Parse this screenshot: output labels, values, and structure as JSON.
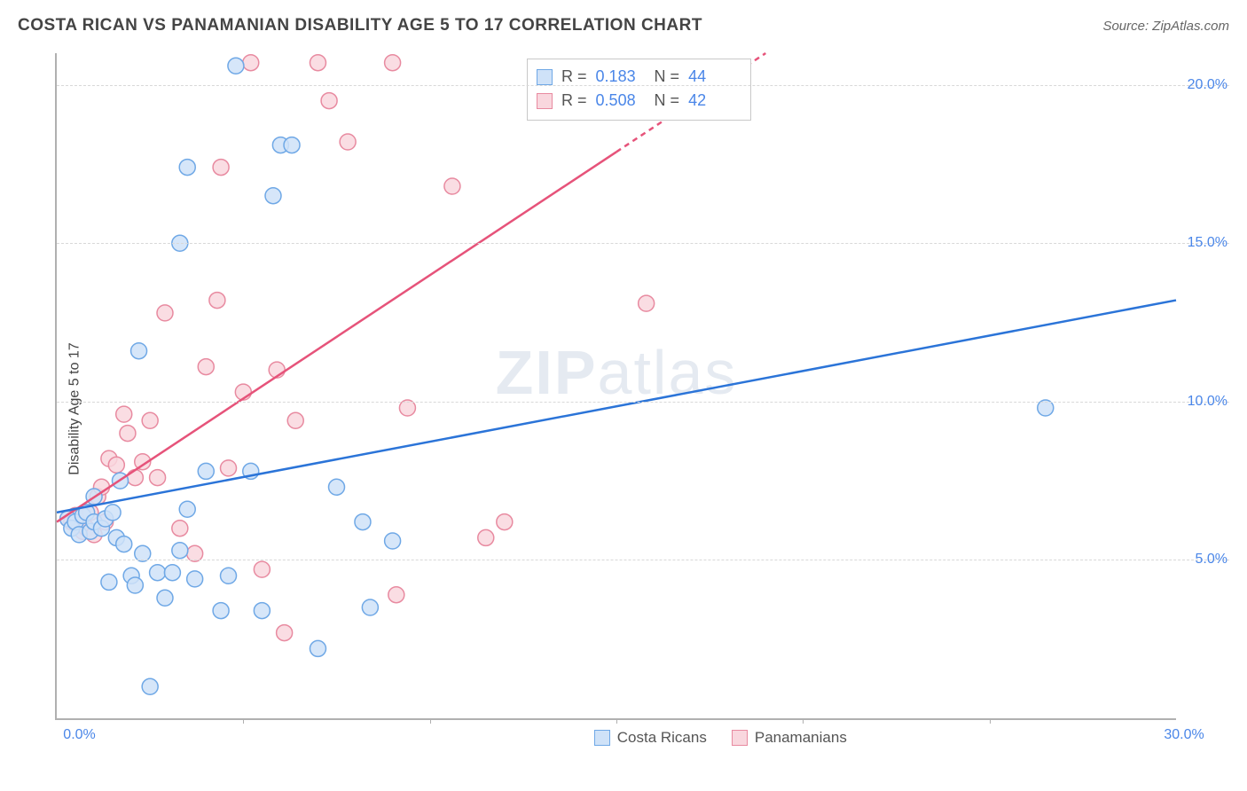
{
  "title": "COSTA RICAN VS PANAMANIAN DISABILITY AGE 5 TO 17 CORRELATION CHART",
  "source": "Source: ZipAtlas.com",
  "ylabel": "Disability Age 5 to 17",
  "watermark_a": "ZIP",
  "watermark_b": "atlas",
  "chart": {
    "type": "scatter",
    "xlim": [
      0,
      30
    ],
    "ylim": [
      0,
      21
    ],
    "xticks": [
      0,
      5,
      10,
      15,
      20,
      25,
      30
    ],
    "xtick_labels": [
      "0.0%",
      "",
      "",
      "",
      "",
      "",
      "30.0%"
    ],
    "xtick_minor": [
      5,
      10,
      15,
      20,
      25
    ],
    "yticks": [
      5,
      10,
      15,
      20
    ],
    "ytick_labels": [
      "5.0%",
      "10.0%",
      "15.0%",
      "20.0%"
    ],
    "grid_color": "#d8d8d8",
    "background_color": "#ffffff",
    "axis_color": "#b0b0b0",
    "marker_radius": 9,
    "marker_stroke_width": 1.5,
    "trend_line_width": 2.5,
    "series": [
      {
        "name": "Costa Ricans",
        "fill": "#cfe2f8",
        "stroke": "#6fa8e6",
        "line_color": "#2b74d8",
        "r": 0.183,
        "n": 44,
        "trend": {
          "x1": 0,
          "y1": 6.5,
          "x2": 30,
          "y2": 13.2,
          "dash_from_x": null
        },
        "points": [
          [
            0.3,
            6.3
          ],
          [
            0.4,
            6.0
          ],
          [
            0.5,
            6.2
          ],
          [
            0.6,
            5.8
          ],
          [
            0.7,
            6.4
          ],
          [
            0.8,
            6.5
          ],
          [
            0.9,
            5.9
          ],
          [
            1.0,
            6.2
          ],
          [
            1.2,
            6.0
          ],
          [
            1.3,
            6.3
          ],
          [
            1.5,
            6.5
          ],
          [
            1.6,
            5.7
          ],
          [
            1.8,
            5.5
          ],
          [
            2.0,
            4.5
          ],
          [
            2.1,
            4.2
          ],
          [
            2.3,
            5.2
          ],
          [
            1.4,
            4.3
          ],
          [
            2.5,
            1.0
          ],
          [
            2.7,
            4.6
          ],
          [
            2.9,
            3.8
          ],
          [
            3.1,
            4.6
          ],
          [
            3.3,
            5.3
          ],
          [
            3.5,
            6.6
          ],
          [
            3.7,
            4.4
          ],
          [
            4.0,
            7.8
          ],
          [
            4.4,
            3.4
          ],
          [
            4.6,
            4.5
          ],
          [
            4.8,
            20.6
          ],
          [
            5.2,
            7.8
          ],
          [
            5.5,
            3.4
          ],
          [
            5.8,
            16.5
          ],
          [
            6.0,
            18.1
          ],
          [
            6.3,
            18.1
          ],
          [
            7.0,
            2.2
          ],
          [
            7.5,
            7.3
          ],
          [
            8.2,
            6.2
          ],
          [
            8.4,
            3.5
          ],
          [
            9.0,
            5.6
          ],
          [
            2.2,
            11.6
          ],
          [
            3.3,
            15.0
          ],
          [
            3.5,
            17.4
          ],
          [
            1.0,
            7.0
          ],
          [
            1.7,
            7.5
          ],
          [
            26.5,
            9.8
          ]
        ]
      },
      {
        "name": "Panamanians",
        "fill": "#f9d7de",
        "stroke": "#e88aa0",
        "line_color": "#e6537a",
        "r": 0.508,
        "n": 42,
        "trend": {
          "x1": 0,
          "y1": 6.2,
          "x2": 19,
          "y2": 21.0,
          "dash_from_x": 15
        },
        "points": [
          [
            0.3,
            6.3
          ],
          [
            0.4,
            6.2
          ],
          [
            0.5,
            6.4
          ],
          [
            0.6,
            6.1
          ],
          [
            0.7,
            5.9
          ],
          [
            0.8,
            6.0
          ],
          [
            0.9,
            6.5
          ],
          [
            1.0,
            5.8
          ],
          [
            1.1,
            7.0
          ],
          [
            1.2,
            7.3
          ],
          [
            1.3,
            6.2
          ],
          [
            1.4,
            8.2
          ],
          [
            1.6,
            8.0
          ],
          [
            1.8,
            9.6
          ],
          [
            1.9,
            9.0
          ],
          [
            2.1,
            7.6
          ],
          [
            2.3,
            8.1
          ],
          [
            2.5,
            9.4
          ],
          [
            2.7,
            7.6
          ],
          [
            2.9,
            12.8
          ],
          [
            3.3,
            6.0
          ],
          [
            3.7,
            5.2
          ],
          [
            4.0,
            11.1
          ],
          [
            4.3,
            13.2
          ],
          [
            4.4,
            17.4
          ],
          [
            4.6,
            7.9
          ],
          [
            5.0,
            10.3
          ],
          [
            5.2,
            20.7
          ],
          [
            5.5,
            4.7
          ],
          [
            5.9,
            11.0
          ],
          [
            6.1,
            2.7
          ],
          [
            6.4,
            9.4
          ],
          [
            7.0,
            20.7
          ],
          [
            7.3,
            19.5
          ],
          [
            7.8,
            18.2
          ],
          [
            9.0,
            20.7
          ],
          [
            9.4,
            9.8
          ],
          [
            10.6,
            16.8
          ],
          [
            12.0,
            6.2
          ],
          [
            9.1,
            3.9
          ],
          [
            15.8,
            13.1
          ],
          [
            11.5,
            5.7
          ]
        ]
      }
    ]
  },
  "legend": {
    "costa_ricans": "Costa Ricans",
    "panamanians": "Panamanians"
  },
  "stats_labels": {
    "r": "R =",
    "n": "N ="
  }
}
